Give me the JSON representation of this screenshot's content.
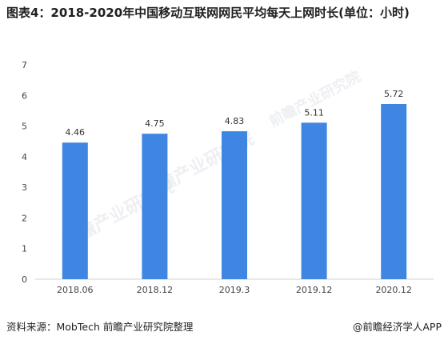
{
  "title": "图表4：2018-2020年中国移动互联网网民平均每天上网时长(单位：小时)",
  "source": "资料来源：MobTech 前瞻产业研究院整理",
  "credit": "@前瞻经济学人APP",
  "watermark": "前瞻产业研究院",
  "chart_data": {
    "type": "bar",
    "categories": [
      "2018.06",
      "2018.12",
      "2019.3",
      "2019.12",
      "2020.12"
    ],
    "values": [
      4.46,
      4.75,
      4.83,
      5.11,
      5.72
    ],
    "data_labels": [
      "4.46",
      "4.75",
      "4.83",
      "5.11",
      "5.72"
    ],
    "title": "",
    "xlabel": "",
    "ylabel": "",
    "ylim": [
      0,
      7
    ],
    "yticks": [
      0,
      1,
      2,
      3,
      4,
      5,
      6,
      7
    ],
    "grid": false,
    "bar_color": "#3f86e2"
  }
}
